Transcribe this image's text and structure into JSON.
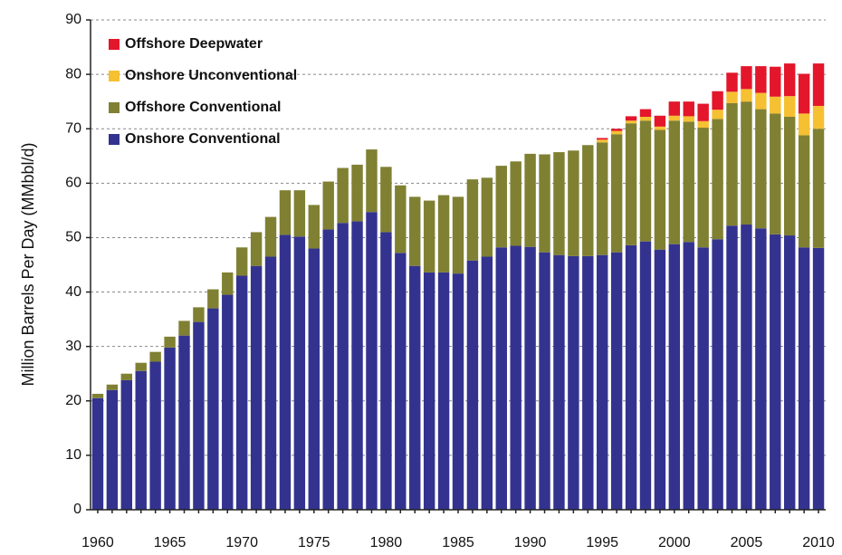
{
  "chart_data": {
    "type": "stacked_bar",
    "y_label": "Million Barrels Per Day (MMbbl/d)",
    "categories": [
      "1960",
      null,
      null,
      null,
      null,
      "1965",
      null,
      null,
      null,
      null,
      "1970",
      null,
      null,
      null,
      null,
      "1975",
      null,
      null,
      null,
      null,
      "1980",
      null,
      null,
      null,
      null,
      "1985",
      null,
      null,
      null,
      null,
      "1990",
      null,
      null,
      null,
      null,
      "1995",
      null,
      null,
      null,
      null,
      "2000",
      null,
      null,
      null,
      null,
      "2005",
      null,
      null,
      null,
      null,
      "2010"
    ],
    "series": [
      {
        "name": "Onshore Conventional",
        "color": "#33338f",
        "values": [
          20.5,
          22,
          23.8,
          25.5,
          27.2,
          29.8,
          32,
          34.5,
          37,
          39.5,
          43,
          44.8,
          46.5,
          50.5,
          50.2,
          48,
          51.5,
          52.7,
          53,
          54.7,
          51,
          47.2,
          44.8,
          43.6,
          43.6,
          43.4,
          45.8,
          46.5,
          48.2,
          48.5,
          48.3,
          47.3,
          46.8,
          46.6,
          46.6,
          46.8,
          47.3,
          48.6,
          49.3,
          47.8,
          48.8,
          49.2,
          48.2,
          49.7,
          52.2,
          52.4,
          51.7,
          50.6,
          50.4,
          48.2,
          48.1
        ]
      },
      {
        "name": "Offshore Conventional",
        "color": "#808033",
        "values": [
          0.8,
          1.0,
          1.2,
          1.5,
          1.8,
          2.0,
          2.7,
          2.7,
          3.5,
          4.1,
          5.2,
          6.2,
          7.3,
          8.2,
          8.5,
          8.0,
          8.8,
          10.1,
          10.4,
          11.5,
          12.0,
          12.4,
          12.7,
          13.2,
          14.2,
          14.1,
          14.9,
          14.5,
          15.0,
          15.5,
          17.1,
          18.0,
          18.9,
          19.4,
          20.4,
          20.7,
          21.7,
          22.4,
          22.2,
          22.0,
          22.7,
          22.1,
          22.0,
          22.1,
          22.5,
          22.6,
          21.9,
          22.2,
          21.8,
          20.6,
          21.9
        ]
      },
      {
        "name": "Onshore Unconventional",
        "color": "#f5c032",
        "values": [
          0,
          0,
          0,
          0,
          0,
          0,
          0,
          0,
          0,
          0,
          0,
          0,
          0,
          0,
          0,
          0,
          0,
          0,
          0,
          0,
          0,
          0,
          0,
          0,
          0,
          0,
          0,
          0,
          0,
          0,
          0,
          0,
          0,
          0,
          0,
          0.5,
          0.6,
          0.5,
          0.7,
          0.6,
          0.9,
          1.0,
          1.2,
          1.7,
          2.1,
          2.3,
          3.0,
          3.1,
          3.8,
          4.0,
          4.2
        ]
      },
      {
        "name": "Offshore Deepwater",
        "color": "#e3162b",
        "values": [
          0,
          0,
          0,
          0,
          0,
          0,
          0,
          0,
          0,
          0,
          0,
          0,
          0,
          0,
          0,
          0,
          0,
          0,
          0,
          0,
          0,
          0,
          0,
          0,
          0,
          0,
          0,
          0,
          0,
          0,
          0,
          0,
          0,
          0,
          0,
          0.3,
          0.4,
          0.8,
          1.4,
          2.0,
          2.6,
          2.7,
          3.2,
          3.4,
          3.5,
          4.2,
          4.9,
          5.5,
          6.0,
          7.3,
          7.8
        ]
      }
    ],
    "ylim": [
      0,
      90
    ],
    "yticks": [
      0,
      10,
      20,
      30,
      40,
      50,
      60,
      70,
      80,
      90
    ],
    "grid": true,
    "legend": "upper left"
  }
}
